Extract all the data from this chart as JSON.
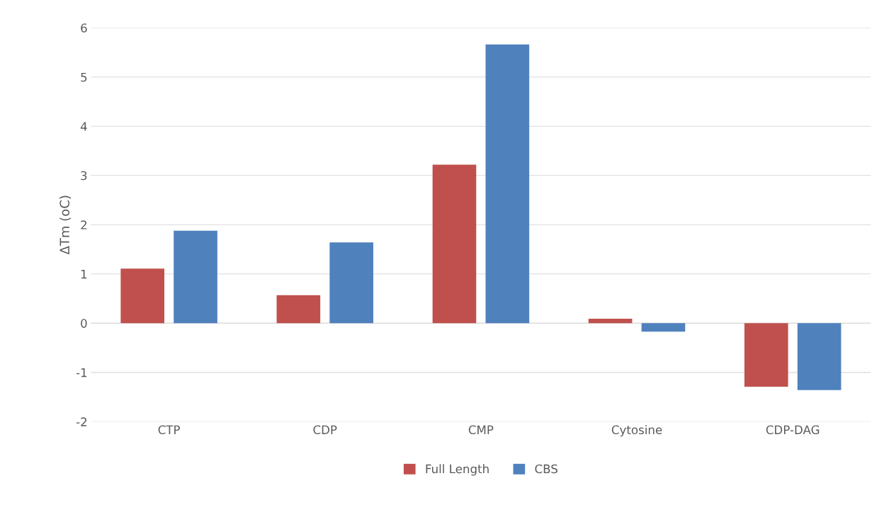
{
  "chart_data": {
    "type": "bar",
    "ylabel": "ΔTm (oC)",
    "categories": [
      "CTP",
      "CDP",
      "CMP",
      "Cytosine",
      "CDP-DAG"
    ],
    "series": [
      {
        "name": "Full Length",
        "color": "#c0504d",
        "values": [
          1.11,
          0.57,
          3.22,
          0.09,
          -1.29
        ]
      },
      {
        "name": "CBS",
        "color": "#4f81bd",
        "values": [
          1.88,
          1.64,
          5.66,
          -0.17,
          -1.36
        ]
      }
    ],
    "ylim": [
      -2,
      6
    ],
    "yticks": [
      -2,
      -1,
      0,
      1,
      2,
      3,
      4,
      5,
      6
    ],
    "grid": "y",
    "legend": "bottom"
  }
}
